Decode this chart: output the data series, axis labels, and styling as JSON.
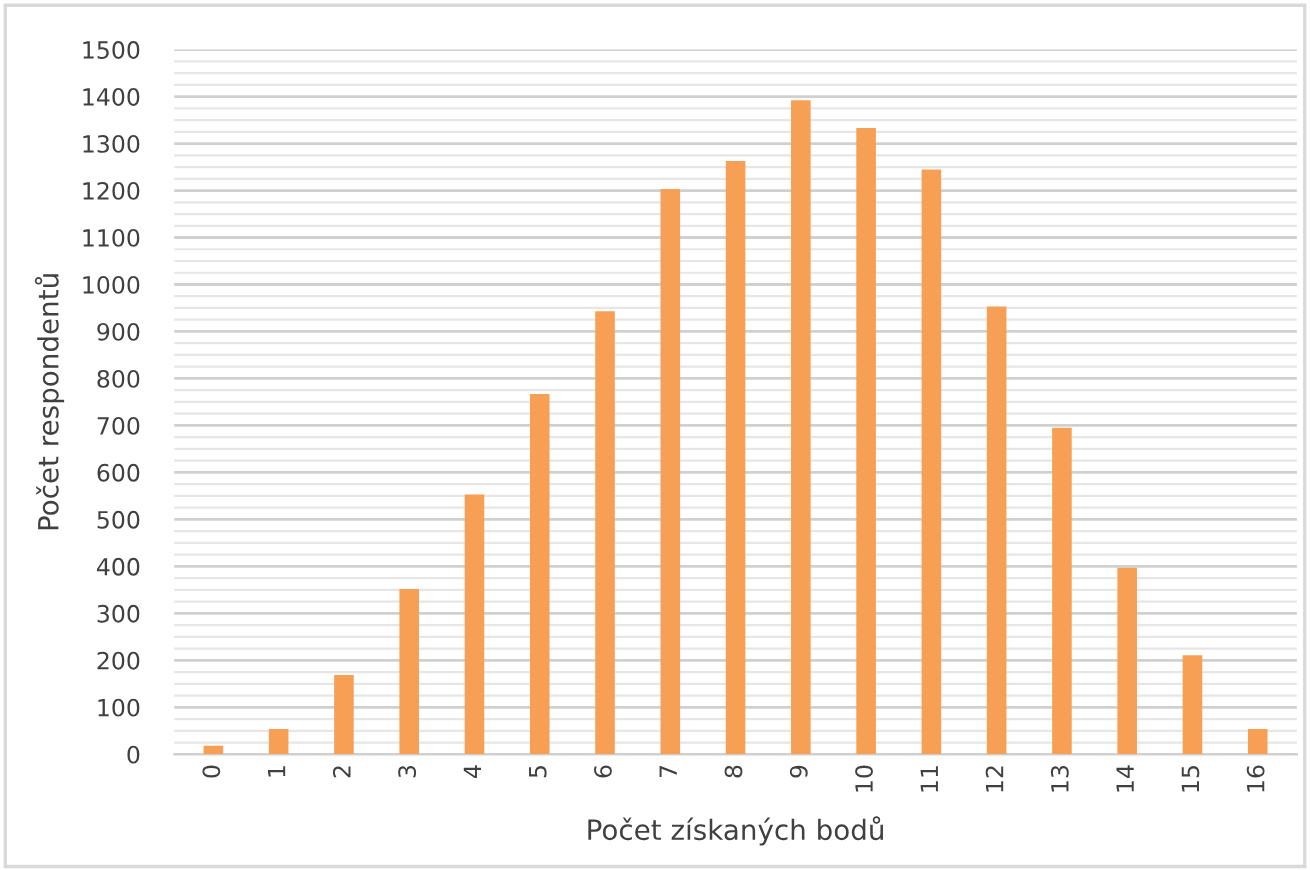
{
  "chart_data": {
    "type": "bar",
    "xlabel": "Počet získaných bodů",
    "ylabel": "Počet respondentů",
    "categories": [
      "0",
      "1",
      "2",
      "3",
      "4",
      "5",
      "6",
      "7",
      "8",
      "9",
      "10",
      "11",
      "12",
      "13",
      "14",
      "15",
      "16"
    ],
    "values": [
      18,
      54,
      169,
      352,
      553,
      767,
      943,
      1203,
      1263,
      1392,
      1333,
      1245,
      953,
      695,
      397,
      211,
      54
    ],
    "color": "#f79f55",
    "ylim": [
      0,
      1500
    ],
    "yticks": [
      0,
      {
        "value": 25,
        "label": null
      },
      {
        "value": 50,
        "label": null
      },
      {
        "value": 75,
        "label": null
      },
      100,
      {
        "value": 125,
        "label": null
      },
      {
        "value": 150,
        "label": null
      },
      {
        "value": 175,
        "label": null
      },
      200,
      {
        "value": 225,
        "label": null
      },
      {
        "value": 250,
        "label": null
      },
      {
        "value": 275,
        "label": null
      },
      300,
      {
        "value": 325,
        "label": null
      },
      {
        "value": 350,
        "label": null
      },
      {
        "value": 375,
        "label": null
      },
      400,
      {
        "value": 425,
        "label": null
      },
      {
        "value": 450,
        "label": null
      },
      {
        "value": 475,
        "label": null
      },
      500,
      {
        "value": 525,
        "label": null
      },
      {
        "value": 550,
        "label": null
      },
      {
        "value": 575,
        "label": null
      },
      600,
      {
        "value": 625,
        "label": null
      },
      {
        "value": 650,
        "label": null
      },
      {
        "value": 675,
        "label": null
      },
      700,
      {
        "value": 725,
        "label": null
      },
      {
        "value": 750,
        "label": null
      },
      {
        "value": 775,
        "label": null
      },
      800,
      {
        "value": 825,
        "label": null
      },
      {
        "value": 850,
        "label": null
      },
      {
        "value": 875,
        "label": null
      },
      900,
      {
        "value": 925,
        "label": null
      },
      {
        "value": 950,
        "label": null
      },
      {
        "value": 975,
        "label": null
      },
      1000,
      {
        "value": 1025,
        "label": null
      },
      {
        "value": 1050,
        "label": null
      },
      {
        "value": 1075,
        "label": null
      },
      1100,
      {
        "value": 1125,
        "label": null
      },
      {
        "value": 1150,
        "label": null
      },
      {
        "value": 1175,
        "label": null
      },
      1200,
      {
        "value": 1225,
        "label": null
      },
      {
        "value": 1250,
        "label": null
      },
      {
        "value": 1275,
        "label": null
      },
      1300,
      {
        "value": 1325,
        "label": null
      },
      {
        "value": 1350,
        "label": null
      },
      {
        "value": 1375,
        "label": null
      },
      1400,
      {
        "value": 1425,
        "label": null
      },
      {
        "value": 1450,
        "label": null
      },
      {
        "value": 1475,
        "label": null
      },
      1500
    ],
    "grid": "y"
  }
}
